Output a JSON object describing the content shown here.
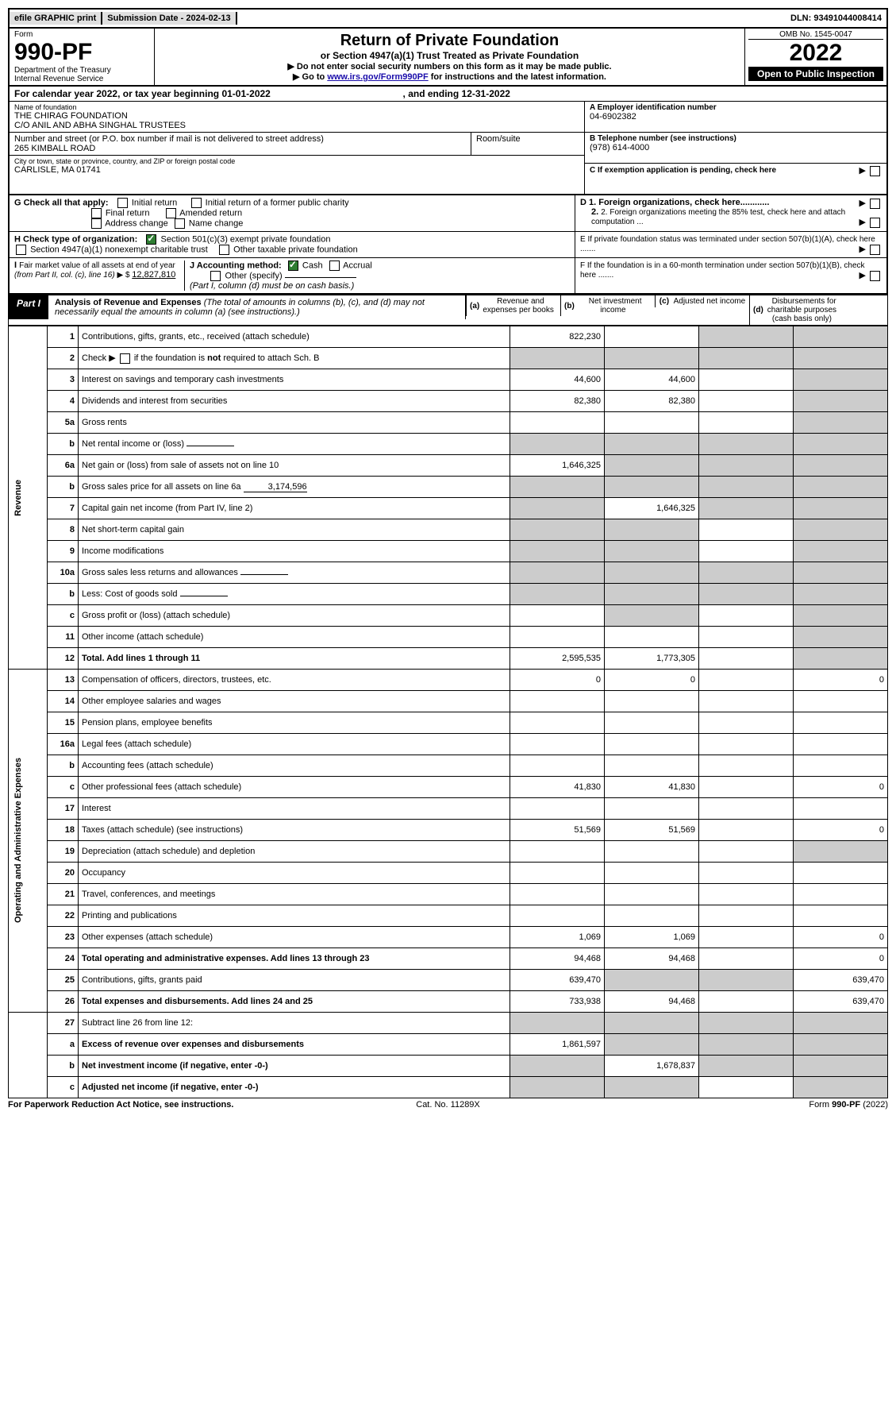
{
  "topbar": {
    "efile": "efile GRAPHIC print",
    "subdate_label": "Submission Date - ",
    "subdate": "2024-02-13",
    "dln_label": "DLN: ",
    "dln": "93491044008414"
  },
  "header": {
    "form_label": "Form",
    "form_num": "990-PF",
    "dept": "Department of the Treasury",
    "irs": "Internal Revenue Service",
    "title": "Return of Private Foundation",
    "subtitle": "or Section 4947(a)(1) Trust Treated as Private Foundation",
    "note1": "▶ Do not enter social security numbers on this form as it may be made public.",
    "note2_pre": "▶ Go to ",
    "note2_link": "www.irs.gov/Form990PF",
    "note2_post": " for instructions and the latest information.",
    "omb": "OMB No. 1545-0047",
    "year": "2022",
    "open": "Open to Public Inspection"
  },
  "calendar": {
    "pre": "For calendar year 2022, or tax year beginning ",
    "begin": "01-01-2022",
    "mid": " , and ending ",
    "end": "12-31-2022"
  },
  "info": {
    "name_label": "Name of foundation",
    "name1": "THE CHIRAG FOUNDATION",
    "name2": "C/O ANIL AND ABHA SINGHAL TRUSTEES",
    "addr_label": "Number and street (or P.O. box number if mail is not delivered to street address)",
    "room_label": "Room/suite",
    "addr": "265 KIMBALL ROAD",
    "city_label": "City or town, state or province, country, and ZIP or foreign postal code",
    "city": "CARLISLE, MA  01741",
    "a_label": "A Employer identification number",
    "a_val": "04-6902382",
    "b_label": "B Telephone number (see instructions)",
    "b_val": "(978) 614-4000",
    "c_label": "C If exemption application is pending, check here",
    "d1_label": "D 1. Foreign organizations, check here............",
    "d2_label": "2. Foreign organizations meeting the 85% test, check here and attach computation ...",
    "e_label": "E  If private foundation status was terminated under section 507(b)(1)(A), check here .......",
    "f_label": "F  If the foundation is in a 60-month termination under section 507(b)(1)(B), check here ......."
  },
  "g": {
    "label": "G Check all that apply:",
    "o1": "Initial return",
    "o2": "Final return",
    "o3": "Address change",
    "o4": "Initial return of a former public charity",
    "o5": "Amended return",
    "o6": "Name change"
  },
  "h": {
    "label": "H Check type of organization:",
    "o1": "Section 501(c)(3) exempt private foundation",
    "o2": "Section 4947(a)(1) nonexempt charitable trust",
    "o3": "Other taxable private foundation"
  },
  "i": {
    "label": "I Fair market value of all assets at end of year (from Part II, col. (c), line 16) ▶ $",
    "val": "12,827,810"
  },
  "j": {
    "label": "J Accounting method:",
    "o1": "Cash",
    "o2": "Accrual",
    "o3": "Other (specify)",
    "note": "(Part I, column (d) must be on cash basis.)"
  },
  "part1": {
    "tab": "Part I",
    "title_bold": "Analysis of Revenue and Expenses",
    "title_rest": " (The total of amounts in columns (b), (c), and (d) may not necessarily equal the amounts in column (a) (see instructions).)",
    "col_a": "(a)   Revenue and expenses per books",
    "col_b": "(b)   Net investment income",
    "col_c": "(c)   Adjusted net income",
    "col_d": "(d)   Disbursements for charitable purposes (cash basis only)"
  },
  "sections": {
    "revenue": "Revenue",
    "op_exp": "Operating and Administrative Expenses"
  },
  "lines": [
    {
      "n": "1",
      "d": "Contributions, gifts, grants, etc., received (attach schedule)",
      "a": "822,230",
      "b": "",
      "c": "shade",
      "dd": "shade"
    },
    {
      "n": "2",
      "d": "Check ▶ ☐ if the foundation is not required to attach Sch. B",
      "a": "shade",
      "b": "shade",
      "c": "shade",
      "dd": "shade",
      "isnot": true
    },
    {
      "n": "3",
      "d": "Interest on savings and temporary cash investments",
      "a": "44,600",
      "b": "44,600",
      "c": "",
      "dd": "shade"
    },
    {
      "n": "4",
      "d": "Dividends and interest from securities",
      "a": "82,380",
      "b": "82,380",
      "c": "",
      "dd": "shade"
    },
    {
      "n": "5a",
      "d": "Gross rents",
      "a": "",
      "b": "",
      "c": "",
      "dd": "shade"
    },
    {
      "n": "b",
      "d": "Net rental income or (loss)",
      "a": "shade",
      "b": "shade",
      "c": "shade",
      "dd": "shade",
      "inline": true
    },
    {
      "n": "6a",
      "d": "Net gain or (loss) from sale of assets not on line 10",
      "a": "1,646,325",
      "b": "shade",
      "c": "shade",
      "dd": "shade"
    },
    {
      "n": "b",
      "d": "Gross sales price for all assets on line 6a",
      "a": "shade",
      "b": "shade",
      "c": "shade",
      "dd": "shade",
      "inline": true,
      "inline_val": "3,174,596"
    },
    {
      "n": "7",
      "d": "Capital gain net income (from Part IV, line 2)",
      "a": "shade",
      "b": "1,646,325",
      "c": "shade",
      "dd": "shade"
    },
    {
      "n": "8",
      "d": "Net short-term capital gain",
      "a": "shade",
      "b": "shade",
      "c": "",
      "dd": "shade"
    },
    {
      "n": "9",
      "d": "Income modifications",
      "a": "shade",
      "b": "shade",
      "c": "",
      "dd": "shade"
    },
    {
      "n": "10a",
      "d": "Gross sales less returns and allowances",
      "a": "shade",
      "b": "shade",
      "c": "shade",
      "dd": "shade",
      "inline": true
    },
    {
      "n": "b",
      "d": "Less: Cost of goods sold",
      "a": "shade",
      "b": "shade",
      "c": "shade",
      "dd": "shade",
      "inline": true
    },
    {
      "n": "c",
      "d": "Gross profit or (loss) (attach schedule)",
      "a": "",
      "b": "shade",
      "c": "",
      "dd": "shade"
    },
    {
      "n": "11",
      "d": "Other income (attach schedule)",
      "a": "",
      "b": "",
      "c": "",
      "dd": "shade"
    },
    {
      "n": "12",
      "d": "Total. Add lines 1 through 11",
      "a": "2,595,535",
      "b": "1,773,305",
      "c": "",
      "dd": "shade",
      "bold": true
    }
  ],
  "exp_lines": [
    {
      "n": "13",
      "d": "Compensation of officers, directors, trustees, etc.",
      "a": "0",
      "b": "0",
      "c": "",
      "dd": "0"
    },
    {
      "n": "14",
      "d": "Other employee salaries and wages",
      "a": "",
      "b": "",
      "c": "",
      "dd": ""
    },
    {
      "n": "15",
      "d": "Pension plans, employee benefits",
      "a": "",
      "b": "",
      "c": "",
      "dd": ""
    },
    {
      "n": "16a",
      "d": "Legal fees (attach schedule)",
      "a": "",
      "b": "",
      "c": "",
      "dd": ""
    },
    {
      "n": "b",
      "d": "Accounting fees (attach schedule)",
      "a": "",
      "b": "",
      "c": "",
      "dd": ""
    },
    {
      "n": "c",
      "d": "Other professional fees (attach schedule)",
      "a": "41,830",
      "b": "41,830",
      "c": "",
      "dd": "0"
    },
    {
      "n": "17",
      "d": "Interest",
      "a": "",
      "b": "",
      "c": "",
      "dd": ""
    },
    {
      "n": "18",
      "d": "Taxes (attach schedule) (see instructions)",
      "a": "51,569",
      "b": "51,569",
      "c": "",
      "dd": "0"
    },
    {
      "n": "19",
      "d": "Depreciation (attach schedule) and depletion",
      "a": "",
      "b": "",
      "c": "",
      "dd": "shade"
    },
    {
      "n": "20",
      "d": "Occupancy",
      "a": "",
      "b": "",
      "c": "",
      "dd": ""
    },
    {
      "n": "21",
      "d": "Travel, conferences, and meetings",
      "a": "",
      "b": "",
      "c": "",
      "dd": ""
    },
    {
      "n": "22",
      "d": "Printing and publications",
      "a": "",
      "b": "",
      "c": "",
      "dd": ""
    },
    {
      "n": "23",
      "d": "Other expenses (attach schedule)",
      "a": "1,069",
      "b": "1,069",
      "c": "",
      "dd": "0"
    },
    {
      "n": "24",
      "d": "Total operating and administrative expenses. Add lines 13 through 23",
      "a": "94,468",
      "b": "94,468",
      "c": "",
      "dd": "0",
      "bold": true
    },
    {
      "n": "25",
      "d": "Contributions, gifts, grants paid",
      "a": "639,470",
      "b": "shade",
      "c": "shade",
      "dd": "639,470"
    },
    {
      "n": "26",
      "d": "Total expenses and disbursements. Add lines 24 and 25",
      "a": "733,938",
      "b": "94,468",
      "c": "",
      "dd": "639,470",
      "bold": true
    }
  ],
  "bottom_lines": [
    {
      "n": "27",
      "d": "Subtract line 26 from line 12:",
      "a": "shade",
      "b": "shade",
      "c": "shade",
      "dd": "shade"
    },
    {
      "n": "a",
      "d": "Excess of revenue over expenses and disbursements",
      "a": "1,861,597",
      "b": "shade",
      "c": "shade",
      "dd": "shade",
      "bold": true
    },
    {
      "n": "b",
      "d": "Net investment income (if negative, enter -0-)",
      "a": "shade",
      "b": "1,678,837",
      "c": "shade",
      "dd": "shade",
      "bold": true
    },
    {
      "n": "c",
      "d": "Adjusted net income (if negative, enter -0-)",
      "a": "shade",
      "b": "shade",
      "c": "",
      "dd": "shade",
      "bold": true
    }
  ],
  "footer": {
    "left": "For Paperwork Reduction Act Notice, see instructions.",
    "center": "Cat. No. 11289X",
    "right": "Form 990-PF (2022)"
  }
}
